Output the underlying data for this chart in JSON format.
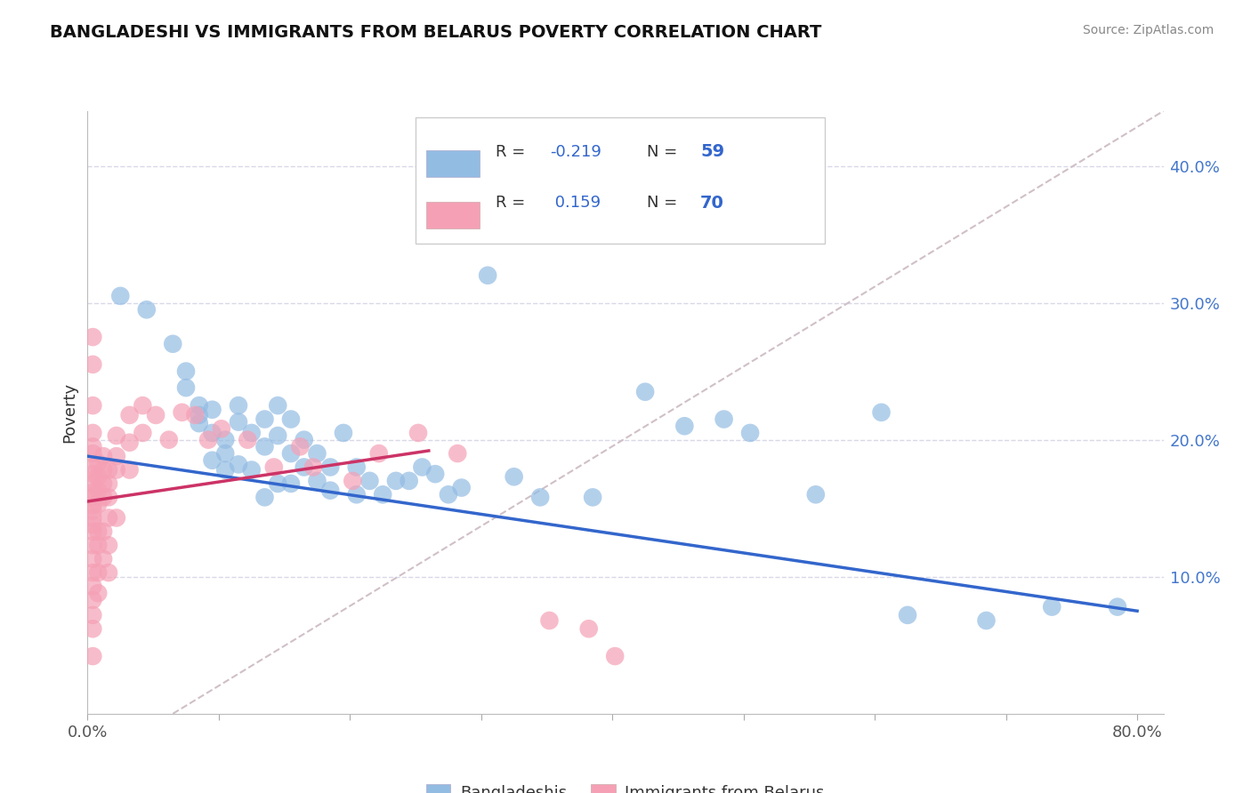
{
  "title": "BANGLADESHI VS IMMIGRANTS FROM BELARUS POVERTY CORRELATION CHART",
  "source": "Source: ZipAtlas.com",
  "ylabel": "Poverty",
  "xlim": [
    0.0,
    0.82
  ],
  "ylim": [
    0.0,
    0.44
  ],
  "y_ticks": [
    0.0,
    0.1,
    0.2,
    0.3,
    0.4
  ],
  "y_tick_labels_right": [
    "",
    "10.0%",
    "20.0%",
    "30.0%",
    "40.0%"
  ],
  "x_ticks": [
    0.0,
    0.1,
    0.2,
    0.3,
    0.4,
    0.5,
    0.6,
    0.7,
    0.8
  ],
  "legend_label1": "Bangladeshis",
  "legend_label2": "Immigrants from Belarus",
  "legend_r1": "R = -0.219",
  "legend_n1": "N = 59",
  "legend_r2": "R =  0.159",
  "legend_n2": "N = 70",
  "blue_color": "#93bce3",
  "pink_color": "#f5a0b5",
  "blue_line_color": "#3366cc",
  "pink_line_color": "#cc3366",
  "diagonal_color": "#d0c0c8",
  "background_color": "#ffffff",
  "grid_color": "#d8d8e8",
  "text_color": "#333333",
  "r_color": "#3366cc",
  "blue_dots": [
    [
      0.025,
      0.305
    ],
    [
      0.045,
      0.295
    ],
    [
      0.065,
      0.27
    ],
    [
      0.075,
      0.25
    ],
    [
      0.075,
      0.238
    ],
    [
      0.085,
      0.225
    ],
    [
      0.085,
      0.218
    ],
    [
      0.085,
      0.212
    ],
    [
      0.095,
      0.222
    ],
    [
      0.095,
      0.205
    ],
    [
      0.095,
      0.185
    ],
    [
      0.105,
      0.2
    ],
    [
      0.105,
      0.19
    ],
    [
      0.105,
      0.178
    ],
    [
      0.115,
      0.225
    ],
    [
      0.115,
      0.213
    ],
    [
      0.115,
      0.182
    ],
    [
      0.125,
      0.205
    ],
    [
      0.125,
      0.178
    ],
    [
      0.135,
      0.215
    ],
    [
      0.135,
      0.195
    ],
    [
      0.135,
      0.158
    ],
    [
      0.145,
      0.225
    ],
    [
      0.145,
      0.203
    ],
    [
      0.145,
      0.168
    ],
    [
      0.155,
      0.215
    ],
    [
      0.155,
      0.19
    ],
    [
      0.155,
      0.168
    ],
    [
      0.165,
      0.2
    ],
    [
      0.165,
      0.18
    ],
    [
      0.175,
      0.19
    ],
    [
      0.175,
      0.17
    ],
    [
      0.185,
      0.18
    ],
    [
      0.185,
      0.163
    ],
    [
      0.195,
      0.205
    ],
    [
      0.205,
      0.18
    ],
    [
      0.205,
      0.16
    ],
    [
      0.215,
      0.17
    ],
    [
      0.225,
      0.16
    ],
    [
      0.235,
      0.17
    ],
    [
      0.245,
      0.17
    ],
    [
      0.255,
      0.18
    ],
    [
      0.265,
      0.175
    ],
    [
      0.275,
      0.16
    ],
    [
      0.285,
      0.165
    ],
    [
      0.305,
      0.32
    ],
    [
      0.325,
      0.173
    ],
    [
      0.345,
      0.158
    ],
    [
      0.385,
      0.158
    ],
    [
      0.425,
      0.235
    ],
    [
      0.455,
      0.21
    ],
    [
      0.485,
      0.215
    ],
    [
      0.505,
      0.205
    ],
    [
      0.555,
      0.16
    ],
    [
      0.605,
      0.22
    ],
    [
      0.625,
      0.072
    ],
    [
      0.685,
      0.068
    ],
    [
      0.735,
      0.078
    ],
    [
      0.785,
      0.078
    ]
  ],
  "pink_dots": [
    [
      0.004,
      0.275
    ],
    [
      0.004,
      0.255
    ],
    [
      0.004,
      0.225
    ],
    [
      0.004,
      0.205
    ],
    [
      0.004,
      0.195
    ],
    [
      0.004,
      0.19
    ],
    [
      0.004,
      0.18
    ],
    [
      0.004,
      0.175
    ],
    [
      0.004,
      0.168
    ],
    [
      0.004,
      0.162
    ],
    [
      0.004,
      0.158
    ],
    [
      0.004,
      0.152
    ],
    [
      0.004,
      0.148
    ],
    [
      0.004,
      0.143
    ],
    [
      0.004,
      0.138
    ],
    [
      0.004,
      0.133
    ],
    [
      0.004,
      0.123
    ],
    [
      0.004,
      0.113
    ],
    [
      0.004,
      0.103
    ],
    [
      0.004,
      0.093
    ],
    [
      0.004,
      0.083
    ],
    [
      0.004,
      0.072
    ],
    [
      0.004,
      0.062
    ],
    [
      0.004,
      0.042
    ],
    [
      0.008,
      0.183
    ],
    [
      0.008,
      0.173
    ],
    [
      0.008,
      0.163
    ],
    [
      0.008,
      0.153
    ],
    [
      0.008,
      0.133
    ],
    [
      0.008,
      0.123
    ],
    [
      0.008,
      0.103
    ],
    [
      0.008,
      0.088
    ],
    [
      0.012,
      0.188
    ],
    [
      0.012,
      0.178
    ],
    [
      0.012,
      0.168
    ],
    [
      0.012,
      0.158
    ],
    [
      0.012,
      0.133
    ],
    [
      0.012,
      0.113
    ],
    [
      0.016,
      0.178
    ],
    [
      0.016,
      0.168
    ],
    [
      0.016,
      0.158
    ],
    [
      0.016,
      0.143
    ],
    [
      0.016,
      0.123
    ],
    [
      0.016,
      0.103
    ],
    [
      0.022,
      0.203
    ],
    [
      0.022,
      0.188
    ],
    [
      0.022,
      0.178
    ],
    [
      0.022,
      0.143
    ],
    [
      0.032,
      0.218
    ],
    [
      0.032,
      0.198
    ],
    [
      0.032,
      0.178
    ],
    [
      0.042,
      0.225
    ],
    [
      0.042,
      0.205
    ],
    [
      0.052,
      0.218
    ],
    [
      0.062,
      0.2
    ],
    [
      0.072,
      0.22
    ],
    [
      0.082,
      0.218
    ],
    [
      0.092,
      0.2
    ],
    [
      0.102,
      0.208
    ],
    [
      0.122,
      0.2
    ],
    [
      0.142,
      0.18
    ],
    [
      0.162,
      0.195
    ],
    [
      0.172,
      0.18
    ],
    [
      0.202,
      0.17
    ],
    [
      0.222,
      0.19
    ],
    [
      0.252,
      0.205
    ],
    [
      0.282,
      0.19
    ],
    [
      0.352,
      0.068
    ],
    [
      0.402,
      0.042
    ],
    [
      0.382,
      0.062
    ]
  ],
  "blue_line": {
    "x0": 0.0,
    "x1": 0.8,
    "y0": 0.188,
    "y1": 0.075
  },
  "pink_line": {
    "x0": 0.0,
    "x1": 0.26,
    "y0": 0.155,
    "y1": 0.192
  },
  "diag_line": {
    "x0": 0.065,
    "x1": 0.82,
    "y0": 0.0,
    "y1": 0.44
  }
}
